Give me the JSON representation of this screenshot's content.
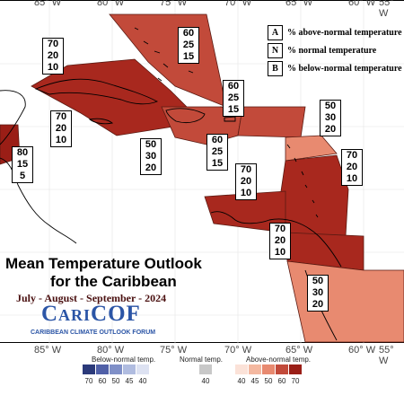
{
  "longitudes": {
    "top": [
      "85° W",
      "80° W",
      "75° W",
      "70° W",
      "65° W",
      "60° W",
      "55° W"
    ],
    "bottom": [
      "85° W",
      "80° W",
      "75° W",
      "70° W",
      "65° W",
      "60° W",
      "55° W"
    ]
  },
  "legend": {
    "rows": [
      {
        "key": "A",
        "text": "% above-normal temperature"
      },
      {
        "key": "N",
        "text": "% normal temperature"
      },
      {
        "key": "B",
        "text": "% below-normal temperature"
      }
    ]
  },
  "regions": [
    {
      "id": "bahamas",
      "above": "60",
      "normal": "25",
      "below": "15",
      "color": "#c24a3a"
    },
    {
      "id": "cuba-cayman",
      "above": "70",
      "normal": "20",
      "below": "10",
      "color": "#a8281e"
    },
    {
      "id": "jamaica-west",
      "above": "70",
      "normal": "20",
      "below": "10",
      "color": "#a8281e"
    },
    {
      "id": "central-america",
      "above": "80",
      "normal": "15",
      "below": "5",
      "color": "#9a1e16"
    },
    {
      "id": "hispaniola",
      "above": "60",
      "normal": "25",
      "below": "15",
      "color": "#c24a3a"
    },
    {
      "id": "caribbean-sea",
      "above": "50",
      "normal": "30",
      "below": "20",
      "color": "#e88a70"
    },
    {
      "id": "puerto-rico",
      "above": "60",
      "normal": "25",
      "below": "15",
      "color": "#c24a3a"
    },
    {
      "id": "leewards",
      "above": "50",
      "normal": "30",
      "below": "20",
      "color": "#e88a70"
    },
    {
      "id": "windwards",
      "above": "70",
      "normal": "20",
      "below": "10",
      "color": "#a8281e"
    },
    {
      "id": "abc-islands",
      "above": "70",
      "normal": "20",
      "below": "10",
      "color": "#a8281e"
    },
    {
      "id": "trinidad",
      "above": "70",
      "normal": "20",
      "below": "10",
      "color": "#a8281e"
    },
    {
      "id": "guianas",
      "above": "50",
      "normal": "30",
      "below": "20",
      "color": "#e88a70"
    }
  ],
  "title": {
    "line1": "Mean Temperature Outlook",
    "line2": "for the Caribbean",
    "period": "July - August - September - 2024"
  },
  "logo": {
    "wordmark": "CariCOF",
    "subtitle": "CARIBBEAN CLIMATE OUTLOOK FORUM"
  },
  "scale": {
    "below_label": "Below-normal temp.",
    "normal_label": "Normal temp.",
    "above_label": "Above-normal temp.",
    "below_ticks": [
      "70",
      "60",
      "50",
      "45",
      "40"
    ],
    "below_colors": [
      "#2b3a7a",
      "#5060a8",
      "#8090c8",
      "#b0bce0",
      "#dde2f2"
    ],
    "normal_ticks": [
      "40"
    ],
    "normal_colors": [
      "#c8c8c8"
    ],
    "above_ticks": [
      "40",
      "45",
      "50",
      "60",
      "70"
    ],
    "above_colors": [
      "#fbe2d8",
      "#f4b8a0",
      "#e88a70",
      "#c24a3a",
      "#9a1e16"
    ]
  }
}
